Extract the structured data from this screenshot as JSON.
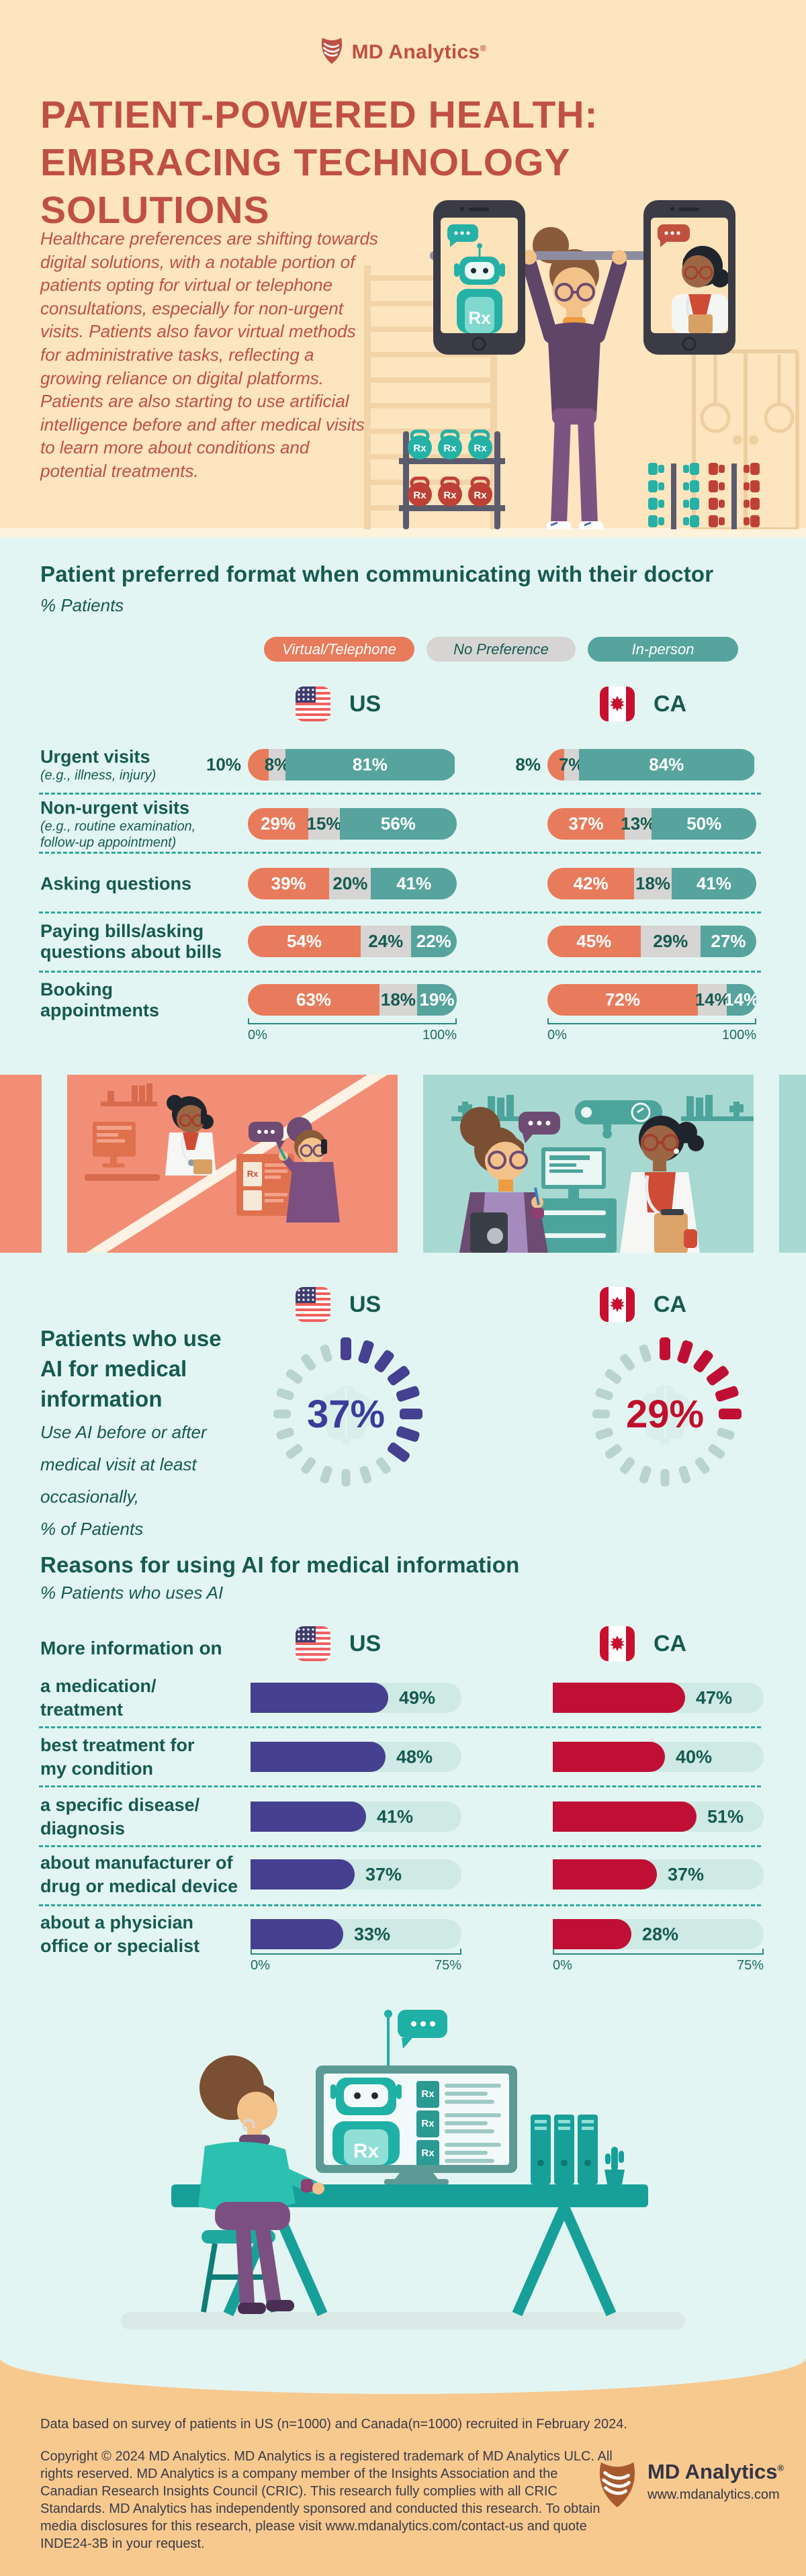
{
  "colors": {
    "peach_bg": "#fce5bf",
    "mint_bg": "#e3f5f2",
    "brick": "#c04f44",
    "dark_teal": "#155a50",
    "orange": "#e87b5c",
    "gray": "#d6d5d3",
    "teal": "#56a49d",
    "separator": "#2ea79c",
    "axis": "#27897f",
    "us_accent": "#454090",
    "us_text": "#3d3c9b",
    "ca_accent": "#c00f35",
    "ca_text": "#c00f2d",
    "bar_track": "#cfe9e5",
    "gauge_inactive": "#b9d3cf",
    "panel_orange": "#f28e76",
    "panel_teal": "#a8d8d2",
    "footer_bg": "#f7c98f",
    "footer_ink": "#3a3a47",
    "illus_teal": "#1fa99f",
    "illus_red": "#bf4136"
  },
  "brand": {
    "name": "MD Analytics",
    "reg": "®",
    "icon": "md-analytics-shield-icon"
  },
  "hero": {
    "title_line1": "PATIENT-POWERED HEALTH:",
    "title_line2": "EMBRACING TECHNOLOGY SOLUTIONS",
    "intro": "Healthcare preferences are shifting towards digital solutions, with a notable portion of patients opting for virtual or telephone consultations, especially for non-urgent visits. Patients also favor virtual methods for administrative tasks, reflecting a growing reliance on digital platforms. Patients are also starting to use artificial intelligence before and after medical visits to learn more about conditions and potential treatments.",
    "illustration": "woman-lifting-barbell-with-phones"
  },
  "icons": {
    "rx_label": "Rx"
  },
  "format_chart": {
    "title": "Patient preferred format when communicating with their doctor",
    "subtitle": "% Patients",
    "legend": [
      {
        "label": "Virtual/Telephone",
        "color_key": "orange"
      },
      {
        "label": "No Preference",
        "color_key": "gray"
      },
      {
        "label": "In-person",
        "color_key": "teal"
      }
    ],
    "columns": [
      {
        "code": "US",
        "flag": "us-flag-icon"
      },
      {
        "code": "CA",
        "flag": "ca-flag-icon"
      }
    ],
    "axis": {
      "min_label": "0%",
      "max_label": "100%"
    },
    "rows": [
      {
        "label_lines": [
          "Urgent visits"
        ],
        "sublabel_lines": [
          "(e.g., illness, injury)"
        ],
        "first_outside": true
      },
      {
        "label_lines": [
          "Non-urgent visits"
        ],
        "sublabel_lines": [
          "(e.g., routine examination,",
          "follow-up appointment)"
        ],
        "first_outside": false
      },
      {
        "label_lines": [
          "Asking questions"
        ],
        "sublabel_lines": [],
        "first_outside": false
      },
      {
        "label_lines": [
          "Paying bills/asking",
          "questions about bills"
        ],
        "sublabel_lines": [],
        "first_outside": false
      },
      {
        "label_lines": [
          "Booking",
          "appointments"
        ],
        "sublabel_lines": [],
        "first_outside": false
      }
    ]
  },
  "ai_usage": {
    "heading_lines": [
      "Patients who use",
      "AI for medical",
      "information"
    ],
    "note_lines": [
      "Use AI before or after",
      "medical visit at least",
      "occasionally,",
      "% of Patients"
    ],
    "center_icon": "brain-icon",
    "gauges": [
      {
        "code": "US",
        "flag": "us-flag-icon",
        "label": "37%",
        "color_key": "us_accent",
        "text_color_key": "us_text"
      },
      {
        "code": "CA",
        "flag": "ca-flag-icon",
        "label": "29%",
        "color_key": "ca_accent",
        "text_color_key": "ca_text"
      }
    ]
  },
  "reasons_chart": {
    "title": "Reasons for using AI for medical information",
    "subtitle": "% Patients who uses AI",
    "row_header": "More information on",
    "axis": {
      "min_label": "0%",
      "max_label": "75%"
    },
    "columns": [
      {
        "code": "US",
        "flag": "us-flag-icon",
        "color_key": "us_accent"
      },
      {
        "code": "CA",
        "flag": "ca-flag-icon",
        "color_key": "ca_accent"
      }
    ],
    "rows": [
      {
        "label_lines": [
          "a medication/",
          "treatment"
        ]
      },
      {
        "label_lines": [
          "best treatment for",
          "my condition"
        ]
      },
      {
        "label_lines": [
          "a specific disease/",
          "diagnosis"
        ]
      },
      {
        "label_lines": [
          "about manufacturer of",
          "drug or medical device"
        ]
      },
      {
        "label_lines": [
          "about a physician",
          "office or specialist"
        ]
      }
    ]
  },
  "footer": {
    "note": "Data based on survey of patients in US (n=1000) and Canada(n=1000) recruited in February 2024.",
    "copyright": "Copyright © 2024 MD Analytics. MD Analytics is a registered trademark of MD Analytics ULC. All rights reserved. MD Analytics is a company member of the Insights Association and the Canadian Research Insights Council (CRIC). This research fully complies with all CRIC Standards. MD Analytics has independently sponsored and conducted this research. To obtain media disclosures for this research, please visit www.mdanalytics.com/contact-us and quote INDE24-3B in your request.",
    "logo": {
      "name": "MD Analytics",
      "reg": "®",
      "url": "www.mdanalytics.com",
      "icon": "md-analytics-shield-icon"
    }
  },
  "chart_data": [
    {
      "type": "bar",
      "variant": "horizontal-stacked",
      "title": "Patient preferred format when communicating with their doctor",
      "subtitle": "% Patients",
      "legend": [
        "Virtual/Telephone",
        "No Preference",
        "In-person"
      ],
      "legend_position": "top",
      "xlim": [
        0,
        100
      ],
      "grid": false,
      "groups": [
        "US",
        "CA"
      ],
      "categories": [
        "Urgent visits (e.g., illness, injury)",
        "Non-urgent visits (e.g., routine examination, follow-up appointment)",
        "Asking questions",
        "Paying bills/asking questions about bills",
        "Booking appointments"
      ],
      "series": [
        {
          "group": "US",
          "name": "Virtual/Telephone",
          "values": [
            10,
            29,
            39,
            54,
            63
          ]
        },
        {
          "group": "US",
          "name": "No Preference",
          "values": [
            8,
            15,
            20,
            24,
            18
          ]
        },
        {
          "group": "US",
          "name": "In-person",
          "values": [
            81,
            56,
            41,
            22,
            19
          ]
        },
        {
          "group": "CA",
          "name": "Virtual/Telephone",
          "values": [
            8,
            37,
            42,
            45,
            72
          ]
        },
        {
          "group": "CA",
          "name": "No Preference",
          "values": [
            7,
            13,
            18,
            29,
            14
          ]
        },
        {
          "group": "CA",
          "name": "In-person",
          "values": [
            84,
            50,
            41,
            27,
            14
          ]
        }
      ]
    },
    {
      "type": "pie",
      "variant": "dashed-donut-gauge",
      "title": "Patients who use AI for medical information",
      "subtitle": "Use AI before or after medical visit at least occasionally, % of Patients",
      "values": {
        "US": 37,
        "CA": 29
      }
    },
    {
      "type": "bar",
      "variant": "horizontal",
      "title": "Reasons for using AI for medical information",
      "subtitle": "% Patients who uses AI",
      "row_header": "More information on",
      "xlim": [
        0,
        75
      ],
      "grid": false,
      "categories": [
        "a medication/treatment",
        "best treatment for my condition",
        "a specific disease/diagnosis",
        "about manufacturer of drug or medical device",
        "about a physician office or specialist"
      ],
      "series": [
        {
          "name": "US",
          "values": [
            49,
            48,
            41,
            37,
            33
          ]
        },
        {
          "name": "CA",
          "values": [
            47,
            40,
            51,
            37,
            28
          ]
        }
      ]
    }
  ]
}
